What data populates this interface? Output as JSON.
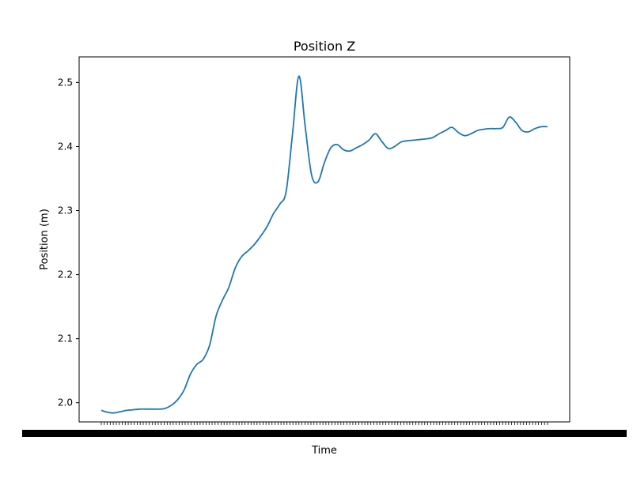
{
  "chart_data": {
    "type": "line",
    "title": "Position Z",
    "xlabel": "Time",
    "ylabel": "Position (m)",
    "ylim": [
      1.97,
      2.54
    ],
    "yticks": [
      "2.0",
      "2.1",
      "2.2",
      "2.3",
      "2.4",
      "2.5"
    ],
    "grid": false,
    "legend": "none",
    "x_tick_count": 150,
    "x_tick_labels_note": "crowded overlapping timestamp labels, illegible",
    "series": [
      {
        "color": "#1f77b4",
        "values": [
          1.988,
          1.985,
          1.984,
          1.986,
          1.988,
          1.989,
          1.99,
          1.99,
          1.99,
          1.99,
          1.991,
          1.996,
          2.005,
          2.02,
          2.045,
          2.06,
          2.068,
          2.09,
          2.135,
          2.16,
          2.18,
          2.21,
          2.228,
          2.237,
          2.247,
          2.26,
          2.275,
          2.295,
          2.31,
          2.33,
          2.42,
          2.51,
          2.43,
          2.355,
          2.345,
          2.375,
          2.398,
          2.403,
          2.395,
          2.393,
          2.398,
          2.403,
          2.41,
          2.42,
          2.408,
          2.397,
          2.4,
          2.407,
          2.409,
          2.41,
          2.411,
          2.412,
          2.414,
          2.42,
          2.425,
          2.43,
          2.422,
          2.417,
          2.42,
          2.425,
          2.427,
          2.428,
          2.428,
          2.43,
          2.446,
          2.438,
          2.425,
          2.423,
          2.428,
          2.431,
          2.431
        ]
      }
    ]
  }
}
